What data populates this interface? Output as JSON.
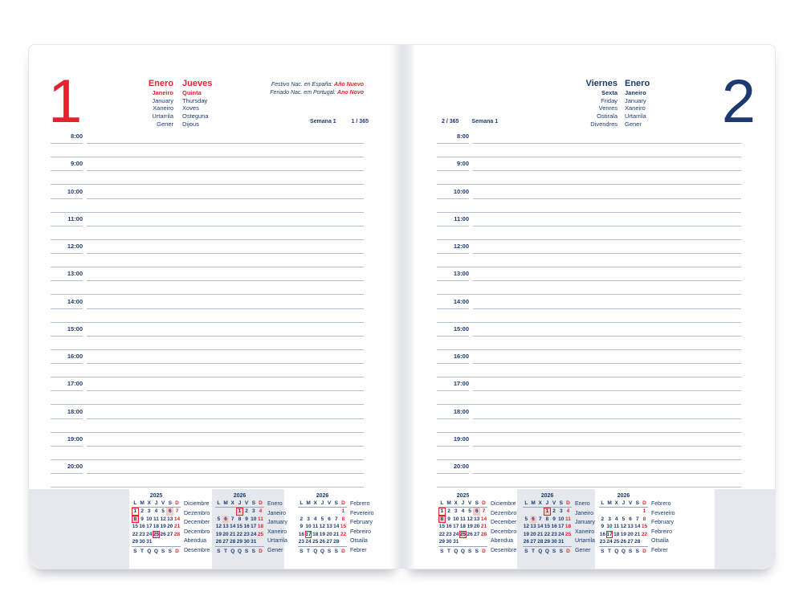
{
  "colors": {
    "red": "#e2242f",
    "navy": "#1c3a71",
    "pink": "#f7caca",
    "line": "#b7c0cf",
    "gray_block": "#e5e9ee"
  },
  "left_page": {
    "day_number": "1",
    "month_names": [
      "Enero",
      "Janeiro",
      "January",
      "Xaneiro",
      "Urtarrila",
      "Gener"
    ],
    "day_names": [
      "Jueves",
      "Quinta",
      "Thursday",
      "Xoves",
      "Osteguna",
      "Dijous"
    ],
    "holiday_notes": [
      {
        "label": "Festivo Nac. en España:",
        "name": "Año Nuevo"
      },
      {
        "label": "Feriado Nac. em Portugal:",
        "name": "Ano Novo"
      }
    ],
    "week_label": "Semana 1",
    "day_count": "1 / 365"
  },
  "right_page": {
    "day_number": "2",
    "day_names": [
      "Viernes",
      "Sexta",
      "Friday",
      "Venres",
      "Ostirala",
      "Divendres"
    ],
    "month_names": [
      "Enero",
      "Janeiro",
      "January",
      "Xaneiro",
      "Urtarrila",
      "Gener"
    ],
    "week_label": "Semana 1",
    "day_count": "2 / 365"
  },
  "schedule_hours": [
    "8:00",
    "9:00",
    "10:00",
    "11:00",
    "12:00",
    "13:00",
    "14:00",
    "15:00",
    "16:00",
    "17:00",
    "18:00",
    "19:00",
    "20:00"
  ],
  "mini_calendars": [
    {
      "year": "2025",
      "head_letters": [
        "L",
        "M",
        "X",
        "J",
        "V",
        "S",
        "D"
      ],
      "foot_letters": [
        "S",
        "T",
        "Q",
        "Q",
        "S",
        "S",
        "D"
      ],
      "weeks": [
        [
          "1",
          "2",
          "3",
          "4",
          "5",
          "6",
          "7"
        ],
        [
          "8",
          "9",
          "10",
          "11",
          "12",
          "13",
          "14"
        ],
        [
          "15",
          "16",
          "17",
          "18",
          "19",
          "20",
          "21"
        ],
        [
          "22",
          "23",
          "24",
          "25",
          "26",
          "27",
          "28"
        ],
        [
          "29",
          "30",
          "31",
          "",
          "",
          "",
          ""
        ]
      ],
      "boxed_days": [
        "1",
        "8",
        "25"
      ],
      "filled_days": [
        "6",
        "8",
        "25"
      ],
      "month_names": [
        "Diciembre",
        "Dezembro",
        "December",
        "Decembro",
        "Abendua",
        "Desembre"
      ]
    },
    {
      "year": "2026",
      "head_letters": [
        "L",
        "M",
        "X",
        "J",
        "V",
        "S",
        "D"
      ],
      "foot_letters": [
        "S",
        "T",
        "Q",
        "Q",
        "S",
        "S",
        "D"
      ],
      "weeks": [
        [
          "",
          "",
          "",
          "1",
          "2",
          "3",
          "4"
        ],
        [
          "5",
          "6",
          "7",
          "8",
          "9",
          "10",
          "11"
        ],
        [
          "12",
          "13",
          "14",
          "15",
          "16",
          "17",
          "18"
        ],
        [
          "19",
          "20",
          "21",
          "22",
          "23",
          "24",
          "25"
        ],
        [
          "26",
          "27",
          "28",
          "29",
          "30",
          "31",
          ""
        ]
      ],
      "boxed_days": [
        "1"
      ],
      "filled_days": [
        "1",
        "6"
      ],
      "month_names": [
        "Enero",
        "Janeiro",
        "January",
        "Xaneiro",
        "Urtarrila",
        "Gener"
      ]
    },
    {
      "year": "2026",
      "head_letters": [
        "L",
        "M",
        "X",
        "J",
        "V",
        "S",
        "D"
      ],
      "foot_letters": [
        "S",
        "T",
        "Q",
        "Q",
        "S",
        "S",
        "D"
      ],
      "weeks": [
        [
          "",
          "",
          "",
          "",
          "",
          "",
          "1"
        ],
        [
          "2",
          "3",
          "4",
          "5",
          "6",
          "7",
          "8"
        ],
        [
          "9",
          "10",
          "11",
          "12",
          "13",
          "14",
          "15"
        ],
        [
          "16",
          "17",
          "18",
          "19",
          "20",
          "21",
          "22"
        ],
        [
          "23",
          "24",
          "25",
          "26",
          "27",
          "28",
          ""
        ]
      ],
      "boxed_days": [
        "17"
      ],
      "filled_days": [],
      "month_names": [
        "Febrero",
        "Fevereiro",
        "February",
        "Febreiro",
        "Otsaila",
        "Febrer"
      ]
    }
  ]
}
